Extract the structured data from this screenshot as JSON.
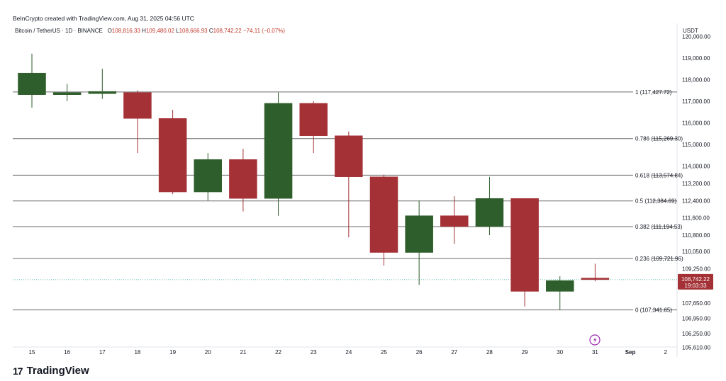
{
  "credit": "BeInCrypto created with TradingView.com, Aug 31, 2025 04:56 UTC",
  "symbol": {
    "name": "Bitcoin / TetherUS · 1D · BINANCE",
    "o_label": "O",
    "o_value": "108,816.33",
    "h_label": "H",
    "h_value": "109,480.02",
    "l_label": "L",
    "l_value": "108,666.93",
    "c_label": "C",
    "c_value": "108,742.22",
    "change": "−74.11 (−0.07%)"
  },
  "currency": "USDT",
  "logo": {
    "mark": "17",
    "text": "TradingView"
  },
  "price_tag": {
    "price": "108,742.22",
    "countdown": "19:03:33"
  },
  "colors": {
    "up": "#2e5e2b",
    "down": "#a33136",
    "grid": "#6b6b6b"
  },
  "chart_data": {
    "type": "candlestick",
    "ylim": [
      105200,
      120600
    ],
    "y_ticks": [
      {
        "value": 120000,
        "label": "120,000.00"
      },
      {
        "value": 119000,
        "label": "119,000.00"
      },
      {
        "value": 118000,
        "label": "118,000.00"
      },
      {
        "value": 117000,
        "label": "117,000.00"
      },
      {
        "value": 116000,
        "label": "116,000.00"
      },
      {
        "value": 115000,
        "label": "115,000.00"
      },
      {
        "value": 114000,
        "label": "114,000.00"
      },
      {
        "value": 113200,
        "label": "113,200.00"
      },
      {
        "value": 112400,
        "label": "112,400.00"
      },
      {
        "value": 111600,
        "label": "111,600.00"
      },
      {
        "value": 110800,
        "label": "110,800.00"
      },
      {
        "value": 110050,
        "label": "110,050.00"
      },
      {
        "value": 109250,
        "label": "109,250.00"
      },
      {
        "value": 107650,
        "label": "107,650.00"
      },
      {
        "value": 106950,
        "label": "106,950.00"
      },
      {
        "value": 106250,
        "label": "106,250.00"
      },
      {
        "value": 105610,
        "label": "105,610.00"
      }
    ],
    "x_ticks": [
      "15",
      "16",
      "17",
      "18",
      "19",
      "20",
      "21",
      "22",
      "23",
      "24",
      "25",
      "26",
      "27",
      "28",
      "29",
      "30",
      "31",
      "Sep",
      "2"
    ],
    "candles": [
      {
        "day": "15",
        "o": 117300,
        "h": 119200,
        "l": 116700,
        "c": 118300
      },
      {
        "day": "16",
        "o": 117300,
        "h": 117800,
        "l": 117000,
        "c": 117400
      },
      {
        "day": "17",
        "o": 117350,
        "h": 118500,
        "l": 117100,
        "c": 117450
      },
      {
        "day": "18",
        "o": 117400,
        "h": 117500,
        "l": 114600,
        "c": 116200
      },
      {
        "day": "19",
        "o": 116200,
        "h": 116600,
        "l": 112700,
        "c": 112800
      },
      {
        "day": "20",
        "o": 112800,
        "h": 114600,
        "l": 112400,
        "c": 114300
      },
      {
        "day": "21",
        "o": 114300,
        "h": 114800,
        "l": 111900,
        "c": 112500
      },
      {
        "day": "22",
        "o": 112500,
        "h": 117400,
        "l": 111700,
        "c": 116900
      },
      {
        "day": "23",
        "o": 116900,
        "h": 117000,
        "l": 114600,
        "c": 115400
      },
      {
        "day": "24",
        "o": 115400,
        "h": 115600,
        "l": 110700,
        "c": 113500
      },
      {
        "day": "25",
        "o": 113500,
        "h": 113600,
        "l": 109400,
        "c": 110000
      },
      {
        "day": "26",
        "o": 110000,
        "h": 112400,
        "l": 108500,
        "c": 111700
      },
      {
        "day": "27",
        "o": 111700,
        "h": 112600,
        "l": 110400,
        "c": 111200
      },
      {
        "day": "28",
        "o": 111200,
        "h": 113500,
        "l": 110800,
        "c": 112500
      },
      {
        "day": "29",
        "o": 112500,
        "h": 112500,
        "l": 107500,
        "c": 108200
      },
      {
        "day": "30",
        "o": 108200,
        "h": 108900,
        "l": 107350,
        "c": 108700
      },
      {
        "day": "31",
        "o": 108816.33,
        "h": 109480.02,
        "l": 108666.93,
        "c": 108742.22
      }
    ],
    "fib_levels": [
      {
        "ratio": "1",
        "value": 117427.72,
        "label": "1 (117,427.72)"
      },
      {
        "ratio": "0.786",
        "value": 115269.3,
        "label": "0.786 (115,269.30)"
      },
      {
        "ratio": "0.618",
        "value": 113574.84,
        "label": "0.618 (113,574.84)"
      },
      {
        "ratio": "0.5",
        "value": 112384.69,
        "label": "0.5 (112,384.69)"
      },
      {
        "ratio": "0.382",
        "value": 111194.53,
        "label": "0.382 (111,194.53)"
      },
      {
        "ratio": "0.236",
        "value": 109721.96,
        "label": "0.236 (109,721.96)"
      },
      {
        "ratio": "0",
        "value": 107341.65,
        "label": "0 (107,341.65)"
      }
    ],
    "last_price": 108742.22
  }
}
